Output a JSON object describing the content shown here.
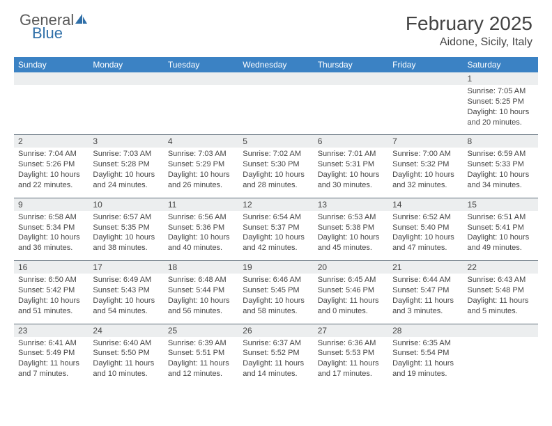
{
  "brand": {
    "part1": "General",
    "part2": "Blue"
  },
  "title": "February 2025",
  "location": "Aidone, Sicily, Italy",
  "colors": {
    "header_bg": "#3b82c4",
    "header_text": "#ffffff",
    "daynum_bg": "#eceeef",
    "row_border": "#5d6c78",
    "text": "#444444",
    "logo_gray": "#5a5a5a",
    "logo_blue": "#2f6fa8"
  },
  "weekdays": [
    "Sunday",
    "Monday",
    "Tuesday",
    "Wednesday",
    "Thursday",
    "Friday",
    "Saturday"
  ],
  "weeks": [
    {
      "nums": [
        "",
        "",
        "",
        "",
        "",
        "",
        "1"
      ],
      "cells": [
        null,
        null,
        null,
        null,
        null,
        null,
        {
          "sunrise": "Sunrise: 7:05 AM",
          "sunset": "Sunset: 5:25 PM",
          "day1": "Daylight: 10 hours",
          "day2": "and 20 minutes."
        }
      ]
    },
    {
      "nums": [
        "2",
        "3",
        "4",
        "5",
        "6",
        "7",
        "8"
      ],
      "cells": [
        {
          "sunrise": "Sunrise: 7:04 AM",
          "sunset": "Sunset: 5:26 PM",
          "day1": "Daylight: 10 hours",
          "day2": "and 22 minutes."
        },
        {
          "sunrise": "Sunrise: 7:03 AM",
          "sunset": "Sunset: 5:28 PM",
          "day1": "Daylight: 10 hours",
          "day2": "and 24 minutes."
        },
        {
          "sunrise": "Sunrise: 7:03 AM",
          "sunset": "Sunset: 5:29 PM",
          "day1": "Daylight: 10 hours",
          "day2": "and 26 minutes."
        },
        {
          "sunrise": "Sunrise: 7:02 AM",
          "sunset": "Sunset: 5:30 PM",
          "day1": "Daylight: 10 hours",
          "day2": "and 28 minutes."
        },
        {
          "sunrise": "Sunrise: 7:01 AM",
          "sunset": "Sunset: 5:31 PM",
          "day1": "Daylight: 10 hours",
          "day2": "and 30 minutes."
        },
        {
          "sunrise": "Sunrise: 7:00 AM",
          "sunset": "Sunset: 5:32 PM",
          "day1": "Daylight: 10 hours",
          "day2": "and 32 minutes."
        },
        {
          "sunrise": "Sunrise: 6:59 AM",
          "sunset": "Sunset: 5:33 PM",
          "day1": "Daylight: 10 hours",
          "day2": "and 34 minutes."
        }
      ]
    },
    {
      "nums": [
        "9",
        "10",
        "11",
        "12",
        "13",
        "14",
        "15"
      ],
      "cells": [
        {
          "sunrise": "Sunrise: 6:58 AM",
          "sunset": "Sunset: 5:34 PM",
          "day1": "Daylight: 10 hours",
          "day2": "and 36 minutes."
        },
        {
          "sunrise": "Sunrise: 6:57 AM",
          "sunset": "Sunset: 5:35 PM",
          "day1": "Daylight: 10 hours",
          "day2": "and 38 minutes."
        },
        {
          "sunrise": "Sunrise: 6:56 AM",
          "sunset": "Sunset: 5:36 PM",
          "day1": "Daylight: 10 hours",
          "day2": "and 40 minutes."
        },
        {
          "sunrise": "Sunrise: 6:54 AM",
          "sunset": "Sunset: 5:37 PM",
          "day1": "Daylight: 10 hours",
          "day2": "and 42 minutes."
        },
        {
          "sunrise": "Sunrise: 6:53 AM",
          "sunset": "Sunset: 5:38 PM",
          "day1": "Daylight: 10 hours",
          "day2": "and 45 minutes."
        },
        {
          "sunrise": "Sunrise: 6:52 AM",
          "sunset": "Sunset: 5:40 PM",
          "day1": "Daylight: 10 hours",
          "day2": "and 47 minutes."
        },
        {
          "sunrise": "Sunrise: 6:51 AM",
          "sunset": "Sunset: 5:41 PM",
          "day1": "Daylight: 10 hours",
          "day2": "and 49 minutes."
        }
      ]
    },
    {
      "nums": [
        "16",
        "17",
        "18",
        "19",
        "20",
        "21",
        "22"
      ],
      "cells": [
        {
          "sunrise": "Sunrise: 6:50 AM",
          "sunset": "Sunset: 5:42 PM",
          "day1": "Daylight: 10 hours",
          "day2": "and 51 minutes."
        },
        {
          "sunrise": "Sunrise: 6:49 AM",
          "sunset": "Sunset: 5:43 PM",
          "day1": "Daylight: 10 hours",
          "day2": "and 54 minutes."
        },
        {
          "sunrise": "Sunrise: 6:48 AM",
          "sunset": "Sunset: 5:44 PM",
          "day1": "Daylight: 10 hours",
          "day2": "and 56 minutes."
        },
        {
          "sunrise": "Sunrise: 6:46 AM",
          "sunset": "Sunset: 5:45 PM",
          "day1": "Daylight: 10 hours",
          "day2": "and 58 minutes."
        },
        {
          "sunrise": "Sunrise: 6:45 AM",
          "sunset": "Sunset: 5:46 PM",
          "day1": "Daylight: 11 hours",
          "day2": "and 0 minutes."
        },
        {
          "sunrise": "Sunrise: 6:44 AM",
          "sunset": "Sunset: 5:47 PM",
          "day1": "Daylight: 11 hours",
          "day2": "and 3 minutes."
        },
        {
          "sunrise": "Sunrise: 6:43 AM",
          "sunset": "Sunset: 5:48 PM",
          "day1": "Daylight: 11 hours",
          "day2": "and 5 minutes."
        }
      ]
    },
    {
      "nums": [
        "23",
        "24",
        "25",
        "26",
        "27",
        "28",
        ""
      ],
      "cells": [
        {
          "sunrise": "Sunrise: 6:41 AM",
          "sunset": "Sunset: 5:49 PM",
          "day1": "Daylight: 11 hours",
          "day2": "and 7 minutes."
        },
        {
          "sunrise": "Sunrise: 6:40 AM",
          "sunset": "Sunset: 5:50 PM",
          "day1": "Daylight: 11 hours",
          "day2": "and 10 minutes."
        },
        {
          "sunrise": "Sunrise: 6:39 AM",
          "sunset": "Sunset: 5:51 PM",
          "day1": "Daylight: 11 hours",
          "day2": "and 12 minutes."
        },
        {
          "sunrise": "Sunrise: 6:37 AM",
          "sunset": "Sunset: 5:52 PM",
          "day1": "Daylight: 11 hours",
          "day2": "and 14 minutes."
        },
        {
          "sunrise": "Sunrise: 6:36 AM",
          "sunset": "Sunset: 5:53 PM",
          "day1": "Daylight: 11 hours",
          "day2": "and 17 minutes."
        },
        {
          "sunrise": "Sunrise: 6:35 AM",
          "sunset": "Sunset: 5:54 PM",
          "day1": "Daylight: 11 hours",
          "day2": "and 19 minutes."
        },
        null
      ]
    }
  ]
}
